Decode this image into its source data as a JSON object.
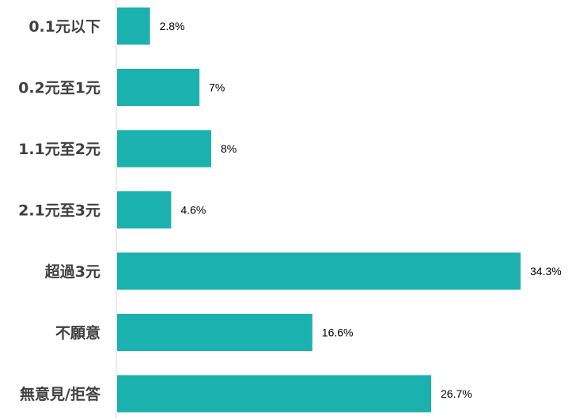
{
  "chart_data": {
    "type": "bar",
    "orientation": "horizontal",
    "categories": [
      "0.1元以下",
      "0.2元至1元",
      "1.1元至2元",
      "2.1元至3元",
      "超過3元",
      "不願意",
      "無意見/拒答"
    ],
    "values": [
      2.8,
      7,
      8,
      4.6,
      34.3,
      16.6,
      26.7
    ],
    "value_labels": [
      "2.8%",
      "7%",
      "8%",
      "4.6%",
      "34.3%",
      "16.6%",
      "26.7%"
    ],
    "unit": "%",
    "title": "",
    "xlabel": "",
    "ylabel": "",
    "xlim": [
      0,
      34.3
    ],
    "grid": false,
    "legend": "none",
    "bar_color": "#1bb1ae"
  }
}
